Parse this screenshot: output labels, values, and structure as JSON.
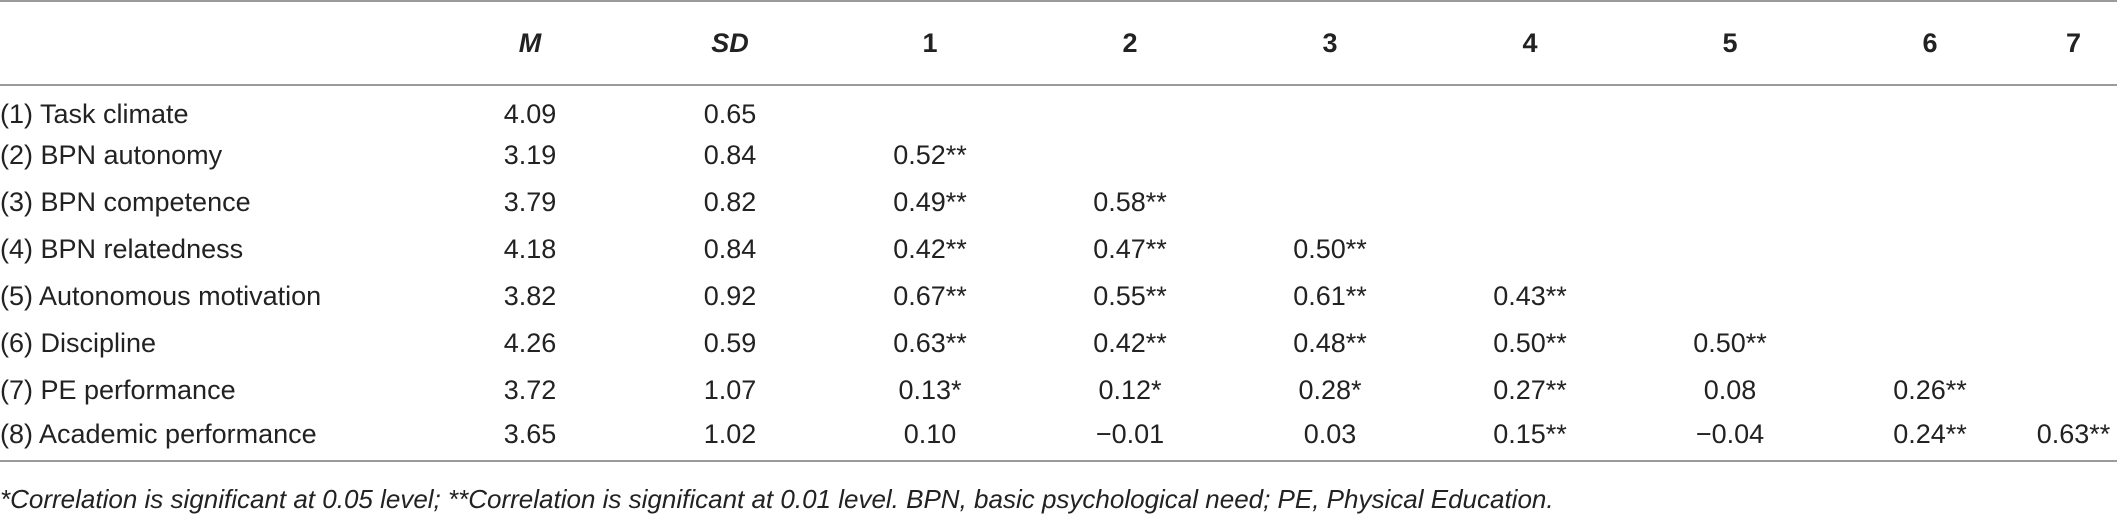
{
  "headers": [
    "",
    "M",
    "SD",
    "1",
    "2",
    "3",
    "4",
    "5",
    "6",
    "7"
  ],
  "rows": [
    {
      "label": "(1) Task climate",
      "cells": [
        "4.09",
        "0.65",
        "",
        "",
        "",
        "",
        "",
        "",
        ""
      ]
    },
    {
      "label": "(2) BPN autonomy",
      "cells": [
        "3.19",
        "0.84",
        "0.52**",
        "",
        "",
        "",
        "",
        "",
        ""
      ]
    },
    {
      "label": "(3) BPN competence",
      "cells": [
        "3.79",
        "0.82",
        "0.49**",
        "0.58**",
        "",
        "",
        "",
        "",
        ""
      ]
    },
    {
      "label": "(4) BPN relatedness",
      "cells": [
        "4.18",
        "0.84",
        "0.42**",
        "0.47**",
        "0.50**",
        "",
        "",
        "",
        ""
      ]
    },
    {
      "label": "(5) Autonomous motivation",
      "cells": [
        "3.82",
        "0.92",
        "0.67**",
        "0.55**",
        "0.61**",
        "0.43**",
        "",
        "",
        ""
      ]
    },
    {
      "label": "(6) Discipline",
      "cells": [
        "4.26",
        "0.59",
        "0.63**",
        "0.42**",
        "0.48**",
        "0.50**",
        "0.50**",
        "",
        ""
      ]
    },
    {
      "label": "(7) PE performance",
      "cells": [
        "3.72",
        "1.07",
        "0.13*",
        "0.12*",
        "0.28*",
        "0.27**",
        "0.08",
        "0.26**",
        ""
      ]
    },
    {
      "label": "(8) Academic performance",
      "cells": [
        "3.65",
        "1.02",
        "0.10",
        "−0.01",
        "0.03",
        "0.15**",
        "−0.04",
        "0.24**",
        "0.63**"
      ]
    }
  ],
  "footnote": "*Correlation is significant at 0.05 level; **Correlation is significant at 0.01 level. BPN, basic psychological need; PE, Physical Education."
}
